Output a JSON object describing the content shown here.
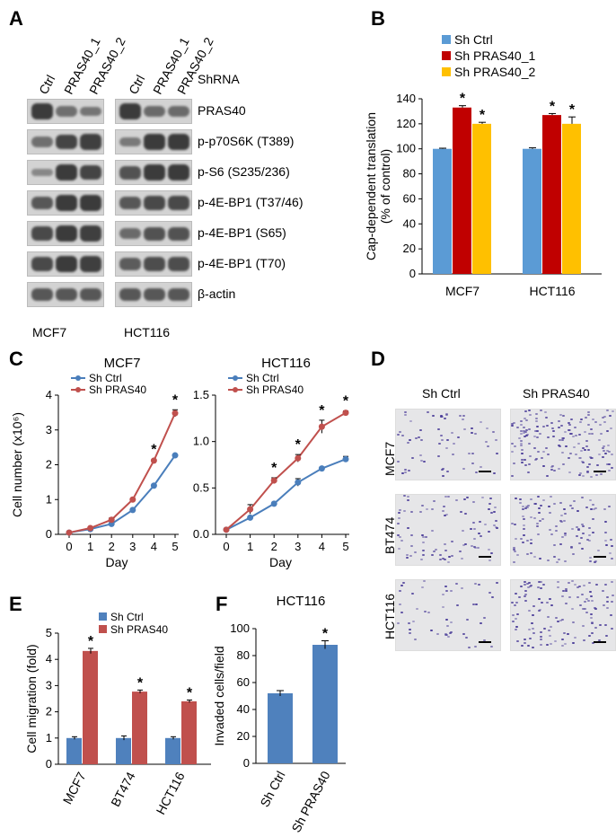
{
  "panels": {
    "A": "A",
    "B": "B",
    "C": "C",
    "D": "D",
    "E": "E",
    "F": "F"
  },
  "panel_a": {
    "lane_labels": [
      "Ctrl",
      "PRAS40_1",
      "PRAS40_2"
    ],
    "header_label": "ShRNA",
    "cell_lines": [
      "MCF7",
      "HCT116"
    ],
    "rows": [
      {
        "label": "PRAS40",
        "mcf7": [
          1.0,
          0.45,
          0.4
        ],
        "hct116": [
          1.0,
          0.5,
          0.5
        ]
      },
      {
        "label": "p-p70S6K (T389)",
        "mcf7": [
          0.45,
          0.9,
          0.95
        ],
        "hct116": [
          0.35,
          1.0,
          1.0
        ]
      },
      {
        "label": "p-S6 (S235/236)",
        "mcf7": [
          0.2,
          1.0,
          0.9
        ],
        "hct116": [
          0.75,
          1.0,
          1.0
        ]
      },
      {
        "label": "p-4E-BP1 (T37/46)",
        "mcf7": [
          0.7,
          1.0,
          1.0
        ],
        "hct116": [
          0.7,
          0.85,
          0.85
        ]
      },
      {
        "label": "p-4E-BP1 (S65)",
        "mcf7": [
          0.85,
          1.0,
          0.95
        ],
        "hct116": [
          0.5,
          0.75,
          0.75
        ]
      },
      {
        "label": "p-4E-BP1 (T70)",
        "mcf7": [
          0.85,
          1.0,
          0.95
        ],
        "hct116": [
          0.65,
          0.8,
          0.8
        ]
      },
      {
        "label": "β-actin",
        "mcf7": [
          0.7,
          0.7,
          0.7
        ],
        "hct116": [
          0.7,
          0.7,
          0.7
        ]
      }
    ]
  },
  "panel_d": {
    "columns": [
      "Sh Ctrl",
      "Sh PRAS40"
    ],
    "rows": [
      "MCF7",
      "BT474",
      "HCT116"
    ],
    "density": [
      [
        0.25,
        0.65
      ],
      [
        0.35,
        0.45
      ],
      [
        0.2,
        0.5
      ]
    ]
  },
  "colors": {
    "blue": "#5b9bd5",
    "red": "#c00000",
    "yellow": "#ffc000",
    "ctrl_line": "#4a7ebb",
    "pras_line": "#c0504d",
    "bar_blue": "#4f81bd",
    "bar_red": "#c0504d"
  },
  "chart_data": [
    {
      "id": "B",
      "type": "bar",
      "categories": [
        "MCF7",
        "HCT116"
      ],
      "series": [
        {
          "name": "Sh Ctrl",
          "values": [
            100,
            100
          ],
          "err": [
            0.5,
            0.8
          ],
          "sig": [
            false,
            false
          ]
        },
        {
          "name": "Sh PRAS40_1",
          "values": [
            133,
            127
          ],
          "err": [
            1.5,
            1.2
          ],
          "sig": [
            true,
            true
          ]
        },
        {
          "name": "Sh PRAS40_2",
          "values": [
            120,
            120
          ],
          "err": [
            1.2,
            5.5
          ],
          "sig": [
            true,
            true
          ]
        }
      ],
      "ylabel": "Cap-dependent translation\n(% of control)",
      "ylim": [
        0,
        140
      ],
      "yticks": [
        0,
        20,
        40,
        60,
        80,
        100,
        120,
        140
      ],
      "legend": "top-left"
    },
    {
      "id": "C1",
      "type": "line",
      "title": "MCF7",
      "x": [
        0,
        1,
        2,
        3,
        4,
        5
      ],
      "series": [
        {
          "name": "Sh Ctrl",
          "values": [
            0.05,
            0.15,
            0.3,
            0.7,
            1.4,
            2.27
          ],
          "err": [
            0,
            0,
            0,
            0,
            0,
            0
          ]
        },
        {
          "name": "Sh PRAS40",
          "values": [
            0.05,
            0.18,
            0.42,
            1.0,
            2.12,
            3.48
          ],
          "err": [
            0,
            0.02,
            0.05,
            0.03,
            0.03,
            0.1
          ],
          "sig": [
            false,
            false,
            false,
            false,
            true,
            true
          ]
        }
      ],
      "xlabel": "Day",
      "ylabel": "Cell number (x10⁶)",
      "ylim": [
        0,
        4
      ],
      "yticks": [
        0,
        1,
        2,
        3,
        4
      ]
    },
    {
      "id": "C2",
      "type": "line",
      "title": "HCT116",
      "x": [
        0,
        1,
        2,
        3,
        4,
        5
      ],
      "series": [
        {
          "name": "Sh Ctrl",
          "values": [
            0.05,
            0.18,
            0.33,
            0.56,
            0.71,
            0.81
          ],
          "err": [
            0,
            0,
            0,
            0.04,
            0,
            0.03
          ]
        },
        {
          "name": "Sh PRAS40",
          "values": [
            0.05,
            0.27,
            0.58,
            0.82,
            1.16,
            1.31
          ],
          "err": [
            0,
            0.05,
            0.03,
            0.04,
            0.07,
            0.02
          ],
          "sig": [
            false,
            false,
            true,
            true,
            true,
            true
          ]
        }
      ],
      "xlabel": "Day",
      "ylim": [
        0,
        1.5
      ],
      "yticks": [
        0.0,
        0.5,
        1.0,
        1.5
      ]
    },
    {
      "id": "E",
      "type": "bar",
      "categories": [
        "MCF7",
        "BT474",
        "HCT116"
      ],
      "series": [
        {
          "name": "Sh Ctrl",
          "values": [
            1.0,
            1.0,
            1.0
          ],
          "err": [
            0.05,
            0.08,
            0.05
          ],
          "sig": [
            false,
            false,
            false
          ]
        },
        {
          "name": "Sh PRAS40",
          "values": [
            4.32,
            2.77,
            2.4
          ],
          "err": [
            0.1,
            0.06,
            0.05
          ],
          "sig": [
            true,
            true,
            true
          ]
        }
      ],
      "ylabel": "Cell migration (fold)",
      "ylim": [
        0,
        5
      ],
      "yticks": [
        0,
        1,
        2,
        3,
        4,
        5
      ],
      "legend": "top-left"
    },
    {
      "id": "F",
      "type": "bar",
      "title": "HCT116",
      "categories": [
        "Sh Ctrl",
        "Sh PRAS40"
      ],
      "values": [
        52,
        88
      ],
      "err": [
        2,
        3
      ],
      "sig": [
        false,
        true
      ],
      "ylabel": "Invaded cells/field",
      "ylim": [
        0,
        100
      ],
      "yticks": [
        0,
        20,
        40,
        60,
        80,
        100
      ]
    }
  ]
}
